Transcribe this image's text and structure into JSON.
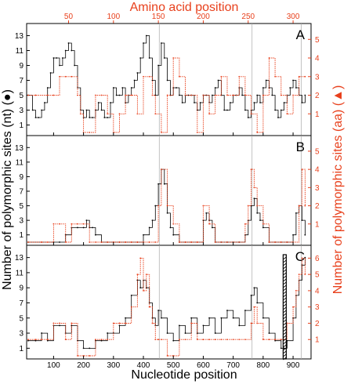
{
  "chart_data": {
    "type": "line",
    "top_axis_label": "Amino acid position",
    "x_label": "Nucleotide position",
    "y_left_label": "Number of polymorphic sites (nt) (●)",
    "y_right_label": "Number of polymorphic sites (aa) (▲)",
    "x_range": [
      10,
      960
    ],
    "x_ticks": [
      "100",
      "200",
      "300",
      "400",
      "500",
      "600",
      "700",
      "800",
      "900"
    ],
    "top_ticks": [
      "50",
      "100",
      "150",
      "200",
      "250",
      "300"
    ],
    "colors": {
      "nt": "#000000",
      "aa": "#e8401c",
      "vline": "#aaaaaa",
      "marker": "#000000"
    },
    "vertical_reference_lines": [
      453,
      763,
      927
    ],
    "panels": [
      {
        "letter": "A",
        "y_left_ticks": [
          "1",
          "3",
          "5",
          "7",
          "9",
          "11",
          "13"
        ],
        "y_left_range": [
          0,
          14
        ],
        "y_right_ticks": [
          "1",
          "2",
          "3",
          "4",
          "5"
        ],
        "y_right_range": [
          0,
          5.6
        ],
        "series": [
          {
            "name": "nt",
            "x": [
              15,
              30,
              40,
              50,
              60,
              70,
              80,
              90,
              100,
              110,
              120,
              130,
              140,
              150,
              160,
              170,
              180,
              190,
              200,
              210,
              220,
              230,
              240,
              250,
              260,
              270,
              280,
              290,
              300,
              310,
              320,
              330,
              340,
              350,
              360,
              370,
              380,
              390,
              400,
              410,
              420,
              430,
              440,
              450,
              460,
              470,
              480,
              490,
              500,
              510,
              520,
              530,
              540,
              550,
              560,
              570,
              580,
              590,
              600,
              610,
              620,
              630,
              640,
              650,
              660,
              670,
              680,
              690,
              700,
              710,
              720,
              730,
              740,
              750,
              760,
              770,
              780,
              790,
              800,
              810,
              820,
              830,
              840,
              850,
              860,
              870,
              880,
              890,
              900,
              910,
              920,
              930,
              940
            ],
            "y": [
              5,
              3,
              2,
              2,
              3,
              4,
              6,
              8,
              10,
              10,
              9,
              10,
              11,
              12,
              11,
              9,
              6,
              3,
              2,
              3,
              2,
              2,
              3,
              4,
              3,
              2,
              2,
              4,
              6,
              5,
              5,
              6,
              4,
              5,
              6,
              7,
              8,
              10,
              12,
              13,
              10,
              7,
              5,
              9,
              12,
              10,
              7,
              5,
              6,
              6,
              5,
              4,
              5,
              5,
              5,
              4,
              3,
              4,
              5,
              5,
              4,
              5,
              6,
              7,
              5,
              3,
              3,
              4,
              5,
              5,
              6,
              5,
              3,
              2,
              3,
              4,
              5,
              4,
              6,
              7,
              6,
              5,
              3,
              2,
              3,
              4,
              5,
              6,
              7,
              6,
              5,
              4,
              5
            ]
          },
          {
            "name": "aa",
            "x": [
              15,
              40,
              80,
              100,
              120,
              140,
              160,
              180,
              190,
              200,
              220,
              240,
              260,
              280,
              300,
              320,
              340,
              360,
              380,
              400,
              420,
              430,
              440,
              460,
              480,
              500,
              520,
              540,
              560,
              580,
              600,
              620,
              640,
              660,
              680,
              700,
              720,
              740,
              760,
              780,
              800,
              820,
              840,
              860,
              880,
              900,
              920,
              940
            ],
            "y": [
              2,
              2,
              2,
              2,
              3,
              3,
              3,
              2,
              1,
              0,
              0,
              2,
              2,
              1,
              0,
              1,
              2,
              2,
              1,
              3,
              3,
              2,
              1,
              0,
              2,
              4,
              3,
              2,
              2,
              0,
              2,
              1,
              2,
              3,
              2,
              2,
              3,
              2,
              1,
              0,
              2,
              4,
              3,
              2,
              1,
              2,
              3,
              3
            ]
          }
        ]
      },
      {
        "letter": "B",
        "y_left_ticks": [
          "1",
          "3",
          "5",
          "7",
          "9",
          "11",
          "13"
        ],
        "y_left_range": [
          0,
          14
        ],
        "y_right_ticks": [
          "1",
          "2",
          "3",
          "4",
          "5"
        ],
        "y_right_range": [
          0,
          5.6
        ],
        "series": [
          {
            "name": "nt",
            "x": [
              15,
              60,
              100,
              120,
              140,
              160,
              180,
              200,
              210,
              220,
              230,
              240,
              260,
              280,
              300,
              320,
              340,
              360,
              380,
              400,
              420,
              430,
              440,
              450,
              460,
              470,
              480,
              490,
              500,
              520,
              540,
              560,
              580,
              600,
              610,
              620,
              630,
              640,
              660,
              680,
              700,
              720,
              740,
              750,
              760,
              770,
              780,
              790,
              800,
              820,
              840,
              860,
              880,
              900,
              910,
              920,
              930,
              940
            ],
            "y": [
              0,
              0,
              0,
              0,
              1,
              2,
              2,
              2,
              3,
              2,
              2,
              1,
              0,
              0,
              0,
              0,
              0,
              0,
              0,
              1,
              2,
              3,
              5,
              8,
              10,
              8,
              4,
              2,
              1,
              0,
              0,
              0,
              0,
              3,
              4,
              3,
              2,
              0,
              0,
              0,
              0,
              0,
              1,
              3,
              5,
              6,
              4,
              3,
              2,
              0,
              0,
              0,
              0,
              1,
              4,
              5,
              3,
              1
            ]
          },
          {
            "name": "aa",
            "x": [
              15,
              60,
              80,
              100,
              120,
              140,
              160,
              180,
              200,
              220,
              240,
              260,
              280,
              300,
              320,
              340,
              360,
              380,
              400,
              420,
              440,
              450,
              460,
              480,
              500,
              520,
              540,
              560,
              580,
              600,
              620,
              640,
              660,
              680,
              700,
              720,
              740,
              750,
              760,
              770,
              780,
              800,
              820,
              840,
              860,
              880,
              900,
              920,
              930,
              940
            ],
            "y": [
              0,
              0,
              0,
              1,
              1,
              0,
              1,
              1,
              1,
              0,
              0,
              0,
              0,
              0,
              0,
              0,
              0,
              0,
              0,
              0,
              0,
              2,
              4,
              2,
              1,
              0,
              0,
              0,
              0,
              2,
              1,
              0,
              0,
              0,
              0,
              0,
              1,
              2,
              4,
              3,
              2,
              1,
              0,
              0,
              0,
              0,
              0,
              2,
              4,
              2
            ]
          }
        ]
      },
      {
        "letter": "C",
        "y_left_ticks": [
          "1",
          "3",
          "5",
          "7",
          "9",
          "11",
          "13"
        ],
        "y_left_range": [
          0,
          14
        ],
        "y_right_ticks": [
          "1",
          "2",
          "3",
          "4",
          "5",
          "6"
        ],
        "y_right_range": [
          0,
          6.5
        ],
        "series": [
          {
            "name": "nt",
            "x": [
              15,
              40,
              60,
              80,
              100,
              120,
              140,
              160,
              180,
              200,
              220,
              240,
              260,
              280,
              300,
              320,
              340,
              360,
              380,
              390,
              400,
              410,
              420,
              430,
              440,
              450,
              460,
              480,
              500,
              520,
              540,
              560,
              580,
              600,
              620,
              640,
              660,
              680,
              700,
              720,
              740,
              760,
              770,
              780,
              800,
              820,
              840,
              860,
              870,
              880,
              900,
              910,
              920,
              930,
              940
            ],
            "y": [
              2,
              2,
              3,
              2,
              4,
              4,
              3,
              4,
              2,
              1,
              1,
              2,
              2,
              3,
              3,
              4,
              5,
              8,
              10,
              9,
              10,
              9,
              7,
              5,
              4,
              6,
              5,
              3,
              2,
              4,
              3,
              5,
              3,
              4,
              5,
              3,
              5,
              6,
              5,
              4,
              6,
              8,
              9,
              7,
              5,
              3,
              2,
              1,
              1,
              2,
              5,
              8,
              10,
              12,
              13
            ]
          },
          {
            "name": "aa",
            "x": [
              15,
              40,
              60,
              80,
              100,
              120,
              140,
              160,
              180,
              200,
              220,
              240,
              260,
              280,
              300,
              320,
              340,
              360,
              380,
              390,
              400,
              410,
              420,
              430,
              440,
              450,
              460,
              480,
              500,
              520,
              540,
              560,
              580,
              600,
              620,
              640,
              660,
              680,
              700,
              720,
              740,
              760,
              770,
              780,
              800,
              820,
              840,
              860,
              870,
              880,
              900,
              910,
              920,
              930,
              940
            ],
            "y": [
              1,
              1,
              1,
              1,
              2,
              2,
              1,
              2,
              0,
              0,
              0,
              1,
              1,
              1,
              2,
              2,
              2,
              3,
              5,
              6,
              4,
              5,
              3,
              2,
              1,
              1,
              1,
              0,
              0,
              1,
              1,
              2,
              1,
              1,
              1,
              1,
              1,
              1,
              1,
              1,
              1,
              2,
              3,
              2,
              1,
              1,
              1,
              1,
              1,
              2,
              3,
              4,
              5,
              6,
              5
            ]
          }
        ]
      }
    ]
  }
}
